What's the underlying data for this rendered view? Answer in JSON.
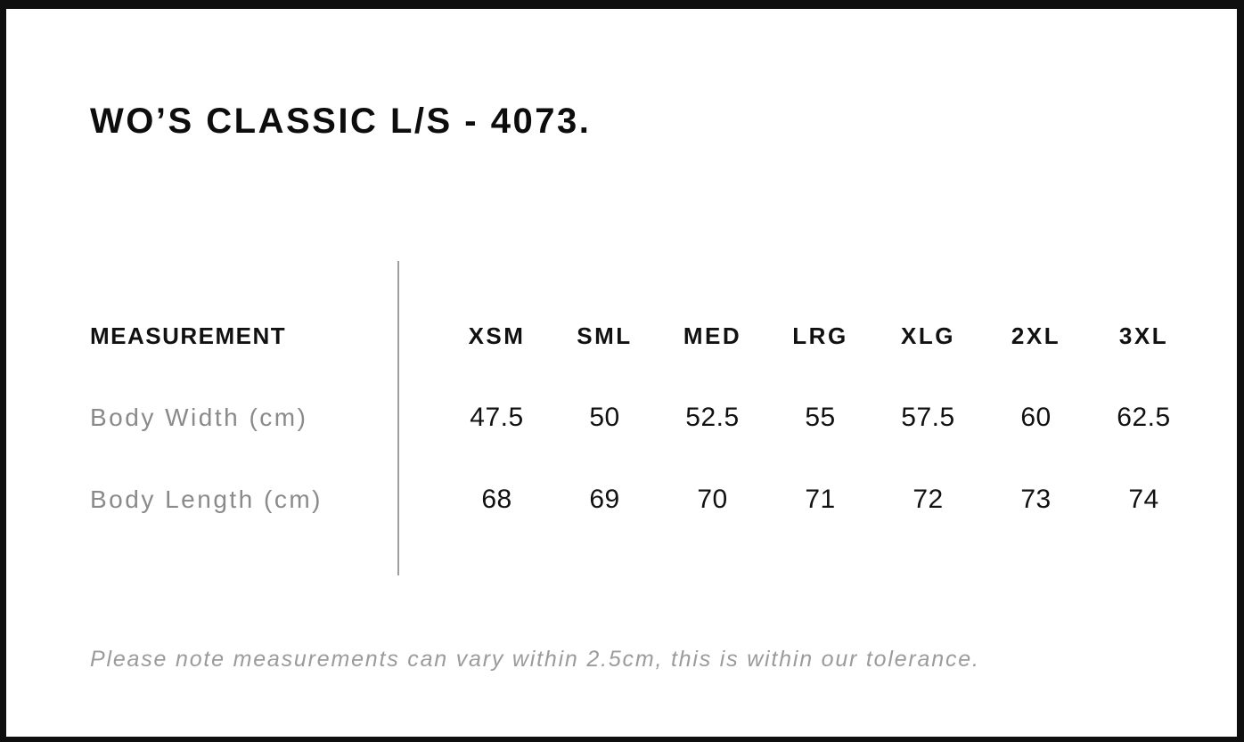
{
  "page": {
    "title": "WO’S CLASSIC L/S - 4073.",
    "note": "Please note measurements can vary within 2.5cm, this is within our tolerance."
  },
  "table": {
    "header_label": "MEASUREMENT",
    "sizes": [
      "XSM",
      "SML",
      "MED",
      "LRG",
      "XLG",
      "2XL",
      "3XL"
    ],
    "rows": [
      {
        "label": "Body Width (cm)",
        "values": [
          "47.5",
          "50",
          "52.5",
          "55",
          "57.5",
          "60",
          "62.5"
        ]
      },
      {
        "label": "Body Length (cm)",
        "values": [
          "68",
          "69",
          "70",
          "71",
          "72",
          "73",
          "74"
        ]
      }
    ]
  },
  "colors": {
    "frame_border": "#0f0f0f",
    "heading_text": "#0d0d0d",
    "value_text": "#111111",
    "row_label_text": "#8a8a8a",
    "note_text": "#9b9b9b",
    "divider": "#9e9e9e",
    "background": "#ffffff"
  },
  "chart_data": {
    "type": "table",
    "title": "WO’S CLASSIC L/S - 4073.",
    "columns": [
      "MEASUREMENT",
      "XSM",
      "SML",
      "MED",
      "LRG",
      "XLG",
      "2XL",
      "3XL"
    ],
    "rows": [
      [
        "Body Width (cm)",
        47.5,
        50,
        52.5,
        55,
        57.5,
        60,
        62.5
      ],
      [
        "Body Length (cm)",
        68,
        69,
        70,
        71,
        72,
        73,
        74
      ]
    ],
    "note": "Please note measurements can vary within 2.5cm, this is within our tolerance.",
    "layout_hints": {
      "label_column_separator": "vertical gray rule",
      "grid": "off",
      "value_alignment": "center"
    }
  }
}
